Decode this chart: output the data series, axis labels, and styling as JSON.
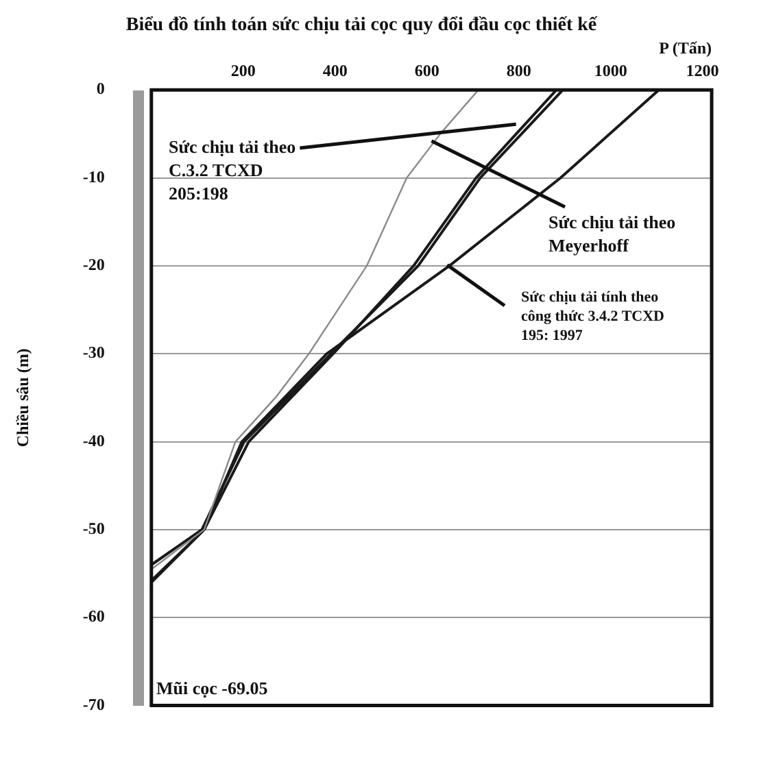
{
  "chart_data": {
    "type": "line",
    "title": "Biểu đồ tính toán sức chịu tải cọc quy đổi đầu cọc thiết kế",
    "xlabel": "P (Tấn)",
    "ylabel": "Chiều sâu (m)",
    "xlim": [
      0,
      1220
    ],
    "xticks": [
      200,
      400,
      600,
      800,
      1000,
      1200
    ],
    "ylim": [
      -70,
      0
    ],
    "yticks": [
      0,
      -10,
      -20,
      -30,
      -40,
      -50,
      -60,
      -70
    ],
    "grid": "y",
    "marker": "none",
    "line_style": "solid",
    "series": [
      {
        "color": "#8a8a8a",
        "x": [
          712,
          629,
          556,
          469,
          406,
          343,
          270,
          183,
          149,
          115,
          0
        ],
        "values": [
          0,
          -5,
          -10,
          -20,
          -25,
          -30,
          -35,
          -40,
          -45,
          -50,
          -54.5
        ]
      },
      {
        "color": "#1a1a1a",
        "x": [
          882,
          707,
          571,
          396,
          212,
          115,
          0
        ],
        "values": [
          0,
          -10,
          -20,
          -30,
          -40,
          -50,
          -55.8
        ]
      },
      {
        "color": "#1a1a1a",
        "x": [
          896,
          716,
          581,
          391,
          202,
          110,
          0
        ],
        "values": [
          0,
          -10,
          -20,
          -30,
          -40,
          -50,
          -54
        ]
      },
      {
        "color": "#1a1a1a",
        "x": [
          1105,
          891,
          649,
          382,
          197,
          115,
          0
        ],
        "values": [
          0,
          -10,
          -20,
          -30,
          -40,
          -50,
          -56
        ]
      }
    ],
    "annotations": [
      {
        "text": "Sức chịu tải theo\nC.3.2 TCXD\n205:198",
        "x": 794,
        "y": -3.9
      },
      {
        "text": "Sức chịu tải theo\nMeyerhoff",
        "x": 610,
        "y": -5.8
      },
      {
        "text": "Sức chịu tải tính theo\ncông thức 3.4.2 TCXD\n195: 1997",
        "x": 644,
        "y": -19.9
      },
      "Mũi cọc -69.05"
    ]
  }
}
